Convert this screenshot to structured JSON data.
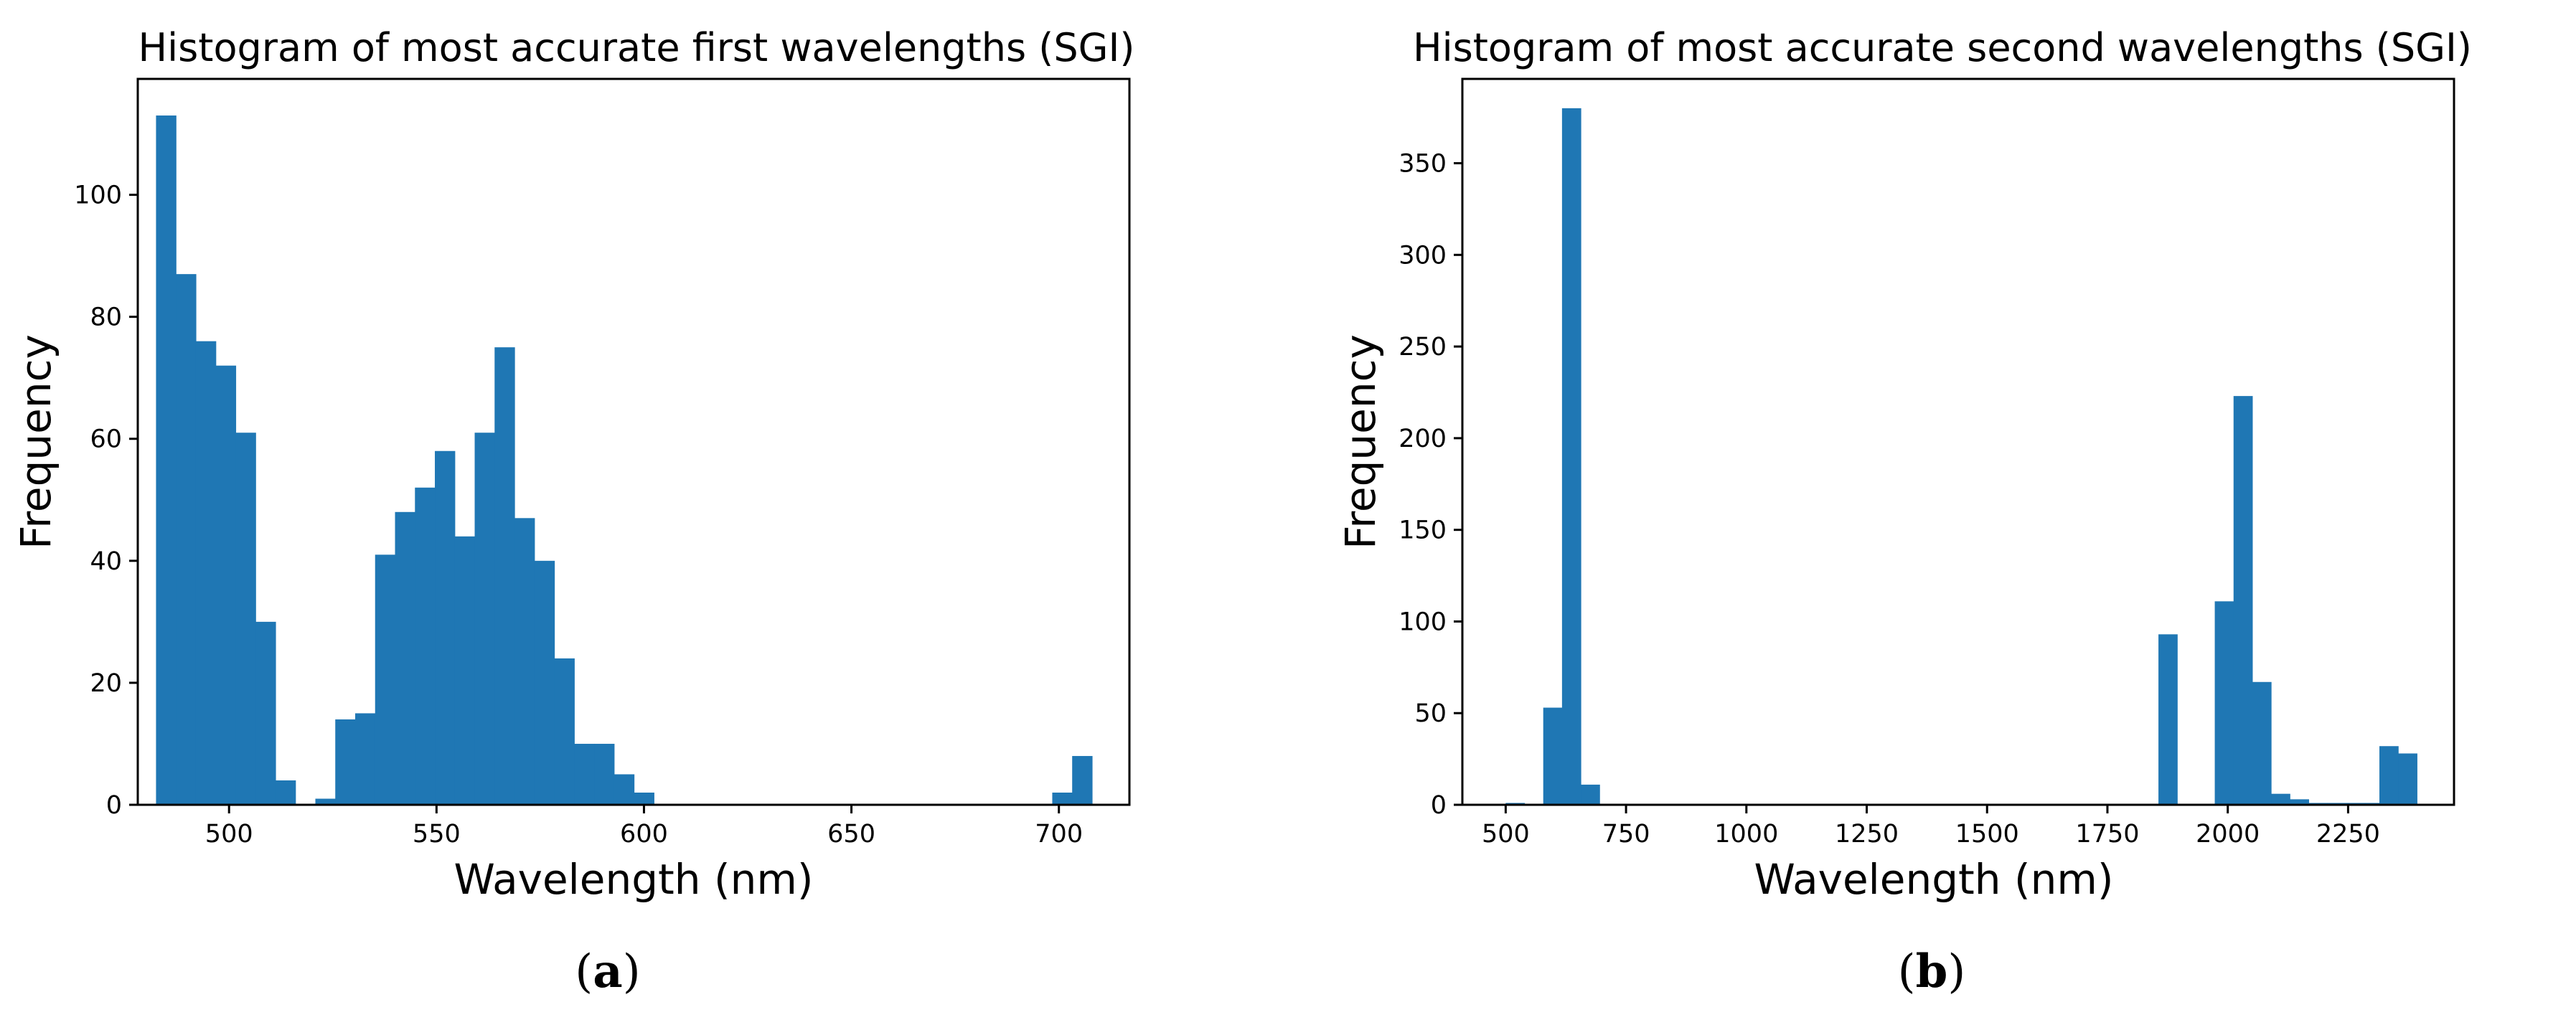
{
  "colors": {
    "bar": "#1f77b4",
    "axis": "#000000",
    "background": "#ffffff"
  },
  "chart_data": [
    {
      "type": "bar",
      "title": "Histogram of most accurate first wavelengths (SGI)",
      "xlabel": "Wavelength (nm)",
      "ylabel": "Frequency",
      "xlim": [
        478,
        717
      ],
      "ylim": [
        0,
        119
      ],
      "xticks": [
        500,
        550,
        600,
        650,
        700
      ],
      "yticks": [
        0,
        20,
        40,
        60,
        80,
        100
      ],
      "bin_width": 4.8,
      "bins": [
        {
          "x": 482.4,
          "v": 113
        },
        {
          "x": 487.2,
          "v": 87
        },
        {
          "x": 492.0,
          "v": 76
        },
        {
          "x": 496.8,
          "v": 72
        },
        {
          "x": 501.6,
          "v": 61
        },
        {
          "x": 506.4,
          "v": 30
        },
        {
          "x": 511.2,
          "v": 4
        },
        {
          "x": 520.8,
          "v": 1
        },
        {
          "x": 525.6,
          "v": 14
        },
        {
          "x": 530.4,
          "v": 15
        },
        {
          "x": 535.2,
          "v": 41
        },
        {
          "x": 540.0,
          "v": 48
        },
        {
          "x": 544.8,
          "v": 52
        },
        {
          "x": 549.6,
          "v": 58
        },
        {
          "x": 554.4,
          "v": 44
        },
        {
          "x": 559.2,
          "v": 61
        },
        {
          "x": 564.0,
          "v": 75
        },
        {
          "x": 568.8,
          "v": 47
        },
        {
          "x": 573.6,
          "v": 40
        },
        {
          "x": 578.4,
          "v": 24
        },
        {
          "x": 583.2,
          "v": 10
        },
        {
          "x": 588.0,
          "v": 10
        },
        {
          "x": 592.8,
          "v": 5
        },
        {
          "x": 597.6,
          "v": 2
        },
        {
          "x": 698.4,
          "v": 2
        },
        {
          "x": 703.2,
          "v": 8
        }
      ],
      "caption_letter": "a"
    },
    {
      "type": "bar",
      "title": "Histogram of most accurate second wavelengths (SGI)",
      "xlabel": "Wavelength (nm)",
      "ylabel": "Frequency",
      "xlim": [
        410,
        2470
      ],
      "ylim": [
        0,
        396
      ],
      "xticks": [
        500,
        750,
        1000,
        1250,
        1500,
        1750,
        2000,
        2250
      ],
      "yticks": [
        0,
        50,
        100,
        150,
        200,
        250,
        300,
        350
      ],
      "bin_width": 39,
      "bins": [
        {
          "x": 500,
          "v": 1
        },
        {
          "x": 578,
          "v": 53
        },
        {
          "x": 617,
          "v": 380
        },
        {
          "x": 656,
          "v": 11
        },
        {
          "x": 1856,
          "v": 93
        },
        {
          "x": 1973,
          "v": 111
        },
        {
          "x": 2012,
          "v": 223
        },
        {
          "x": 2051,
          "v": 67
        },
        {
          "x": 2090,
          "v": 6
        },
        {
          "x": 2129,
          "v": 3
        },
        {
          "x": 2168,
          "v": 1
        },
        {
          "x": 2207,
          "v": 1
        },
        {
          "x": 2246,
          "v": 1
        },
        {
          "x": 2285,
          "v": 1
        },
        {
          "x": 2315,
          "v": 32
        },
        {
          "x": 2354,
          "v": 28
        }
      ],
      "caption_letter": "b"
    }
  ]
}
